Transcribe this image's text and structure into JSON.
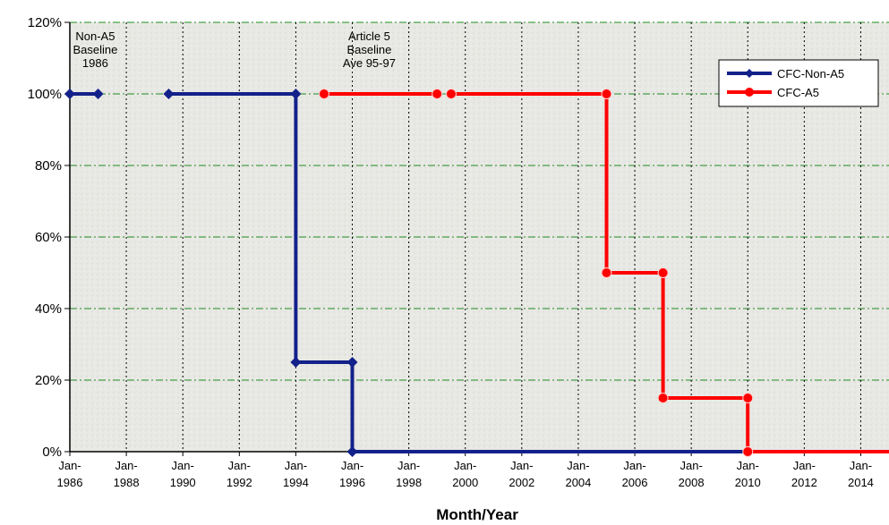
{
  "chart_data": {
    "type": "line",
    "title": "",
    "xlabel": "Month/Year",
    "ylabel": "",
    "x_axis": {
      "min": 1986,
      "max": 2015,
      "ticks": [
        1986,
        1988,
        1990,
        1992,
        1994,
        1996,
        1998,
        2000,
        2002,
        2004,
        2006,
        2008,
        2010,
        2012,
        2014
      ]
    },
    "y_axis": {
      "min": 0,
      "max": 120,
      "unit": "%",
      "ticks": [
        0,
        20,
        40,
        60,
        80,
        100,
        120
      ]
    },
    "tick_prefix": "Jan-",
    "grid": {
      "horizontal": true,
      "horizontal_style": "dash-dot green",
      "vertical": true,
      "vertical_style": "dotted black"
    },
    "legend_placement": "top-right",
    "series": [
      {
        "name": "CFC-Non-A5",
        "color": "#13218a",
        "segments": [
          {
            "points": [
              [
                1986,
                100
              ],
              [
                1987,
                100
              ]
            ]
          },
          {
            "points": [
              [
                1989.5,
                100
              ],
              [
                1994,
                100
              ],
              [
                1994,
                25
              ],
              [
                1996,
                25
              ],
              [
                1996,
                0
              ],
              [
                2010,
                0
              ]
            ]
          }
        ]
      },
      {
        "name": "CFC-A5",
        "color": "#ff0000",
        "segments": [
          {
            "points": [
              [
                1995,
                100
              ],
              [
                1999,
                100
              ]
            ]
          },
          {
            "points": [
              [
                1999.5,
                100
              ],
              [
                2005,
                100
              ],
              [
                2005,
                50
              ],
              [
                2007,
                50
              ],
              [
                2007,
                15
              ],
              [
                2010,
                15
              ],
              [
                2010,
                0
              ],
              [
                2015,
                0
              ]
            ]
          }
        ]
      }
    ],
    "annotations": [
      {
        "lines": [
          "Non-A5",
          "Baseline",
          "1986"
        ],
        "x": 1986.9,
        "y": 115
      },
      {
        "lines": [
          "Article 5",
          "Baseline",
          "Ave 95-97"
        ],
        "x": 1996.6,
        "y": 115
      }
    ]
  },
  "colors": {
    "plot_background": "#e9e9e6",
    "grid_horizontal": "#1e8c1e",
    "grid_vertical": "#000000"
  }
}
